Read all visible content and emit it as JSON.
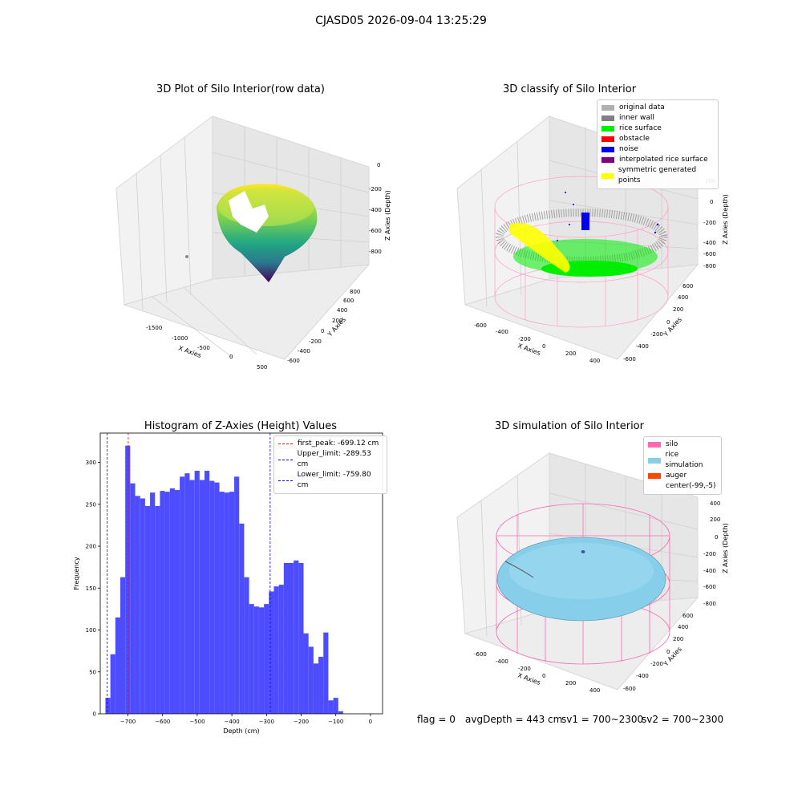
{
  "suptitle": "CJASD05 2026-09-04 13:25:29",
  "panels": {
    "raw": {
      "title": "3D Plot of Silo Interior(row data)",
      "xlabel": "X Axies",
      "ylabel": "Y Axies",
      "zlabel": "Z Axies (Depth)",
      "xticks": [
        "-1500",
        "-1000",
        "-500",
        "0",
        "500"
      ],
      "yticks": [
        "-600",
        "-400",
        "-200",
        "0",
        "200",
        "400",
        "600",
        "800"
      ],
      "zticks": [
        "0",
        "-200",
        "-400",
        "-600",
        "-800"
      ]
    },
    "classify": {
      "title": "3D classify of Silo Interior",
      "xlabel": "X Axies",
      "ylabel": "Y Axies",
      "zlabel": "Z Axies (Depth)",
      "xticks": [
        "-600",
        "-400",
        "-200",
        "0",
        "200",
        "400"
      ],
      "yticks": [
        "-600",
        "-400",
        "-200",
        "0",
        "200",
        "400",
        "600"
      ],
      "zticks": [
        "200",
        "0",
        "-200",
        "-400",
        "-600",
        "-800"
      ],
      "legend": [
        {
          "label": "original data",
          "color": "#b0b0b0"
        },
        {
          "label": "inner wall",
          "color": "#808080"
        },
        {
          "label": "rice surface",
          "color": "#00ee00"
        },
        {
          "label": "obstacle",
          "color": "#ff0000"
        },
        {
          "label": "noise",
          "color": "#0000ee"
        },
        {
          "label": "interpolated rice surface",
          "color": "#800080"
        },
        {
          "label": "symmetric generated points",
          "color": "#ffff00"
        }
      ]
    },
    "simulation": {
      "title": "3D simulation of Silo Interior",
      "xlabel": "X Axies",
      "ylabel": "Y Axies",
      "zlabel": "Z Axies (Depth)",
      "xticks": [
        "-600",
        "-400",
        "-200",
        "0",
        "200",
        "400"
      ],
      "yticks": [
        "-600",
        "-400",
        "-200",
        "0",
        "200",
        "400",
        "600"
      ],
      "zticks": [
        "400",
        "200",
        "0",
        "-200",
        "-400",
        "-600",
        "-800"
      ],
      "legend": [
        {
          "label": "silo",
          "color": "#ff69b4"
        },
        {
          "label": "rice simulation",
          "color": "#87ceeb"
        },
        {
          "label": "auger",
          "color": "#ff4500"
        },
        {
          "label": "center(-99,-5)",
          "color": "#ffffff"
        }
      ]
    }
  },
  "status": {
    "flag": "flag = 0",
    "avg_depth": "avgDepth = 443 cm",
    "sv1": "sv1 = 700~2300",
    "sv2": "sv2 = 700~2300"
  },
  "colors": {
    "bar": "#4d4dff",
    "first_peak_line": "#ff0000",
    "limit_line": "#0000ee"
  },
  "chart_data": {
    "type": "bar",
    "title": "Histogram of Z-Axies (Height) Values",
    "xlabel": "Depth (cm)",
    "ylabel": "Frequency",
    "xlim": [
      -780,
      35
    ],
    "ylim": [
      0,
      335
    ],
    "xticks": [
      -700,
      -600,
      -500,
      -400,
      -300,
      -200,
      -100,
      0
    ],
    "yticks": [
      0,
      50,
      100,
      150,
      200,
      250,
      300
    ],
    "bin_width": 14.3,
    "bin_starts": [
      -765,
      -750.7,
      -736.4,
      -722.1,
      -707.8,
      -693.5,
      -679.2,
      -664.9,
      -650.6,
      -636.3,
      -622,
      -607.7,
      -593.4,
      -579.1,
      -564.8,
      -550.5,
      -536.2,
      -521.9,
      -507.6,
      -493.3,
      -479,
      -464.7,
      -450.4,
      -436.1,
      -421.8,
      -407.5,
      -393.2,
      -378.9,
      -364.6,
      -350.3,
      -336,
      -321.7,
      -307.4,
      -293.1,
      -278.8,
      -264.5,
      -250.2,
      -235.9,
      -221.6,
      -207.3,
      -193,
      -178.7,
      -164.4,
      -150.1,
      -135.8,
      -121.5,
      -107.2,
      -92.9,
      -78.6,
      -64.3,
      -50,
      -35.7,
      -21.4,
      -7.1
    ],
    "values": [
      19,
      71,
      115,
      163,
      320,
      275,
      260,
      257,
      248,
      264,
      248,
      266,
      265,
      269,
      267,
      283,
      287,
      279,
      290,
      279,
      290,
      278,
      276,
      265,
      264,
      265,
      283,
      227,
      163,
      131,
      128,
      127,
      131,
      146,
      152,
      154,
      180,
      180,
      183,
      180,
      96,
      80,
      60,
      68,
      97,
      16,
      19,
      3,
      0,
      0,
      0,
      0,
      0,
      0
    ],
    "vlines": [
      {
        "name": "first_peak: -699.12 cm",
        "x": -699.12,
        "color": "#ff0000"
      },
      {
        "name": "Upper_limit: -289.53 cm",
        "x": -289.53,
        "color": "#0000ee"
      },
      {
        "name": "Lower_limit: -759.80 cm",
        "x": -759.8,
        "color": "#0000ee"
      }
    ],
    "legend_position": "top-right",
    "grid": false
  }
}
